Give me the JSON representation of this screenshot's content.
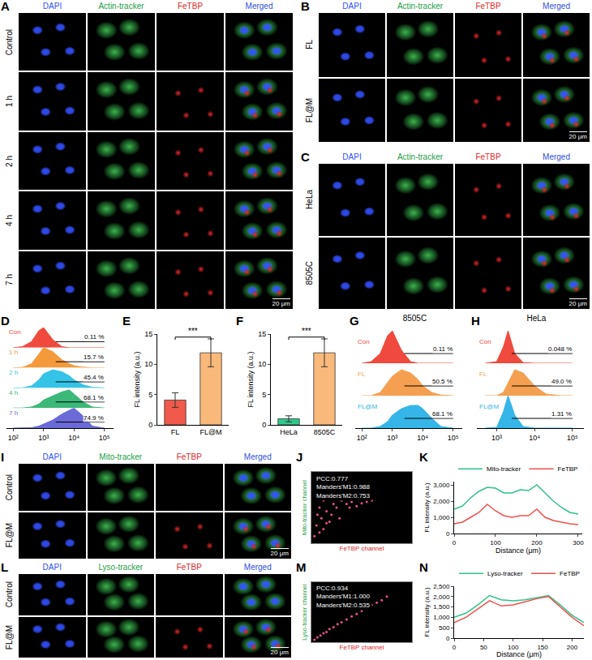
{
  "images": [
    {
      "letter": "A",
      "columns": [
        "DAPI",
        "Actin-tracker",
        "FeTBP",
        "Merged"
      ],
      "header_colors": [
        "#2f4fff",
        "#22a045",
        "#e02828",
        "#3050e0"
      ],
      "rows": [
        "Control",
        "1 h",
        "2 h",
        "4 h",
        "7 h"
      ],
      "fetbp_signal": [
        false,
        true,
        true,
        true,
        true
      ],
      "scale_bar": "20 μm"
    },
    {
      "letter": "B",
      "columns": [
        "DAPI",
        "Actin-tracker",
        "FeTBP",
        "Merged"
      ],
      "header_colors": [
        "#2f4fff",
        "#22a045",
        "#e02828",
        "#3050e0"
      ],
      "rows": [
        "FL",
        "FL@M"
      ],
      "fetbp_signal": [
        true,
        true
      ],
      "scale_bar": "20 μm"
    },
    {
      "letter": "C",
      "columns": [
        "DAPI",
        "Actin-tracker",
        "FeTBP",
        "Merged"
      ],
      "header_colors": [
        "#2f4fff",
        "#22a045",
        "#e02828",
        "#3050e0"
      ],
      "rows": [
        "HeLa",
        "8505C"
      ],
      "fetbp_signal": [
        true,
        true
      ],
      "scale_bar": "20 μm"
    },
    {
      "letter": "I",
      "columns": [
        "DAPI",
        "Mito-tracker",
        "FeTBP",
        "Merged"
      ],
      "header_colors": [
        "#2f4fff",
        "#22a045",
        "#e02828",
        "#3050e0"
      ],
      "rows": [
        "Control",
        "FL@M"
      ],
      "fetbp_signal": [
        false,
        true
      ],
      "scale_bar": "20 μm"
    },
    {
      "letter": "L",
      "columns": [
        "DAPI",
        "Lyso-tracker",
        "FeTBP",
        "Merged"
      ],
      "header_colors": [
        "#2f4fff",
        "#22a045",
        "#e02828",
        "#3050e0"
      ],
      "rows": [
        "Control",
        "FL@M"
      ],
      "fetbp_signal": [
        false,
        true
      ],
      "scale_bar": "20 μm"
    }
  ],
  "chart_data": [
    {
      "letter": "D",
      "type": "flow_histogram",
      "log": "x",
      "x": [
        100,
        200,
        400,
        700,
        1000,
        2000,
        4000,
        7000,
        10000,
        20000,
        40000,
        100000
      ],
      "xlim": [
        60,
        200000
      ],
      "xticks": [
        {
          "value": 100,
          "label": "10²"
        },
        {
          "value": 1000,
          "label": "10³"
        },
        {
          "value": 10000,
          "label": "10⁴"
        },
        {
          "value": 100000,
          "label": "10⁵"
        }
      ],
      "ylim": [
        0,
        1
      ],
      "tick_labels": "x",
      "gate": [
        2500,
        100000
      ],
      "series": [
        {
          "name": "Con",
          "color": "#f04a3e",
          "gate_label": "0.11 %",
          "values": [
            0,
            0.05,
            0.3,
            0.85,
            1,
            0.4,
            0.05,
            0,
            0,
            0,
            0,
            0
          ]
        },
        {
          "name": "1 h",
          "color": "#f59a3a",
          "gate_label": "15.7 %",
          "values": [
            0,
            0.02,
            0.2,
            0.7,
            1,
            0.8,
            0.4,
            0.2,
            0.1,
            0.03,
            0,
            0
          ]
        },
        {
          "name": "2 h",
          "color": "#35c4e8",
          "gate_label": "45.4 %",
          "values": [
            0,
            0,
            0.1,
            0.4,
            0.7,
            0.9,
            0.8,
            0.6,
            0.4,
            0.15,
            0.03,
            0
          ]
        },
        {
          "name": "4 h",
          "color": "#3cb878",
          "gate_label": "68.1 %",
          "values": [
            0,
            0,
            0.05,
            0.2,
            0.4,
            0.6,
            0.8,
            0.9,
            0.7,
            0.3,
            0.05,
            0
          ]
        },
        {
          "name": "7 h",
          "color": "#6a6ad8",
          "gate_label": "74.9 %",
          "values": [
            0,
            0,
            0.02,
            0.1,
            0.2,
            0.4,
            0.7,
            0.9,
            1,
            0.6,
            0.1,
            0
          ]
        }
      ]
    },
    {
      "letter": "E",
      "type": "bar",
      "categories": [
        "FL",
        "FL@M"
      ],
      "values": [
        4.1,
        11.9
      ],
      "errors": [
        1.2,
        2.3
      ],
      "colors": [
        "#f05a4a",
        "#f9b97a"
      ],
      "ylim": [
        0,
        15
      ],
      "yticks": [
        0,
        5,
        10,
        15
      ],
      "y_label": "FL intensity (a.u.)",
      "significance": "***"
    },
    {
      "letter": "F",
      "type": "bar",
      "categories": [
        "HeLa",
        "8505C"
      ],
      "values": [
        1.0,
        11.9
      ],
      "errors": [
        0.5,
        2.3
      ],
      "colors": [
        "#2fc98c",
        "#f9b97a"
      ],
      "ylim": [
        0,
        15
      ],
      "yticks": [
        0,
        5,
        10,
        15
      ],
      "y_label": "FL intensity (a.u.)",
      "significance": "***"
    },
    {
      "letter": "G",
      "type": "flow_histogram",
      "title": "8505C",
      "log": "x",
      "x": [
        100,
        200,
        400,
        700,
        1000,
        2000,
        4000,
        7000,
        10000,
        20000,
        40000,
        100000
      ],
      "xlim": [
        60,
        200000
      ],
      "xticks": [
        {
          "value": 100,
          "label": "10²"
        },
        {
          "value": 1000,
          "label": "10³"
        },
        {
          "value": 10000,
          "label": "10⁴"
        },
        {
          "value": 100000,
          "label": "10⁵"
        }
      ],
      "ylim": [
        0,
        1
      ],
      "tick_labels": "x",
      "gate": [
        2500,
        100000
      ],
      "series": [
        {
          "name": "Con",
          "color": "#f04a3e",
          "gate_label": "0.11 %",
          "values": [
            0,
            0.05,
            0.3,
            0.85,
            1,
            0.4,
            0.05,
            0,
            0,
            0,
            0,
            0
          ]
        },
        {
          "name": "FL",
          "color": "#f5a050",
          "gate_label": "50.5 %",
          "values": [
            0,
            0,
            0.1,
            0.4,
            0.6,
            0.8,
            0.7,
            0.5,
            0.3,
            0.1,
            0.02,
            0
          ]
        },
        {
          "name": "FL@M",
          "color": "#35b5e8",
          "gate_label": "68.1 %",
          "values": [
            0,
            0,
            0.05,
            0.2,
            0.4,
            0.6,
            0.7,
            0.7,
            0.6,
            0.3,
            0.05,
            0
          ]
        }
      ]
    },
    {
      "letter": "H",
      "type": "flow_histogram",
      "title": "HeLa",
      "log": "x",
      "x": [
        500,
        1000,
        1500,
        2000,
        3000,
        5000,
        10000,
        20000,
        50000,
        100000
      ],
      "xlim": [
        300,
        200000
      ],
      "xticks": [
        {
          "value": 1000,
          "label": "10³"
        },
        {
          "value": 10000,
          "label": "10⁴"
        },
        {
          "value": 100000,
          "label": "10⁵"
        }
      ],
      "ylim": [
        0,
        1
      ],
      "tick_labels": "x",
      "gate": [
        2500,
        100000
      ],
      "series": [
        {
          "name": "Con",
          "color": "#f04a3e",
          "gate_label": "0.048 %",
          "values": [
            0,
            0.05,
            0.5,
            1,
            0.3,
            0.02,
            0,
            0,
            0,
            0
          ]
        },
        {
          "name": "FL",
          "color": "#f5a050",
          "gate_label": "49.0 %",
          "values": [
            0,
            0,
            0.1,
            0.4,
            0.8,
            0.7,
            0.3,
            0.05,
            0,
            0
          ]
        },
        {
          "name": "FL@M",
          "color": "#35b5e8",
          "gate_label": "1.31 %",
          "values": [
            0,
            0.02,
            0.5,
            1,
            0.4,
            0.05,
            0,
            0,
            0,
            0
          ]
        }
      ]
    },
    {
      "letter": "J",
      "type": "scatter",
      "x": [
        3,
        5,
        8,
        10,
        12,
        15,
        18,
        20,
        22,
        25,
        28,
        30,
        35,
        40,
        45,
        50,
        55,
        60,
        8,
        12,
        6,
        15,
        25,
        38
      ],
      "y": [
        10,
        25,
        15,
        35,
        20,
        45,
        30,
        40,
        55,
        50,
        35,
        60,
        55,
        58,
        52,
        56,
        58,
        60,
        50,
        60,
        40,
        28,
        62,
        50
      ],
      "color": "#e8508a",
      "xlim": [
        0,
        100
      ],
      "ylim": [
        0,
        100
      ],
      "tick_labels": false,
      "x_label": "FeTBP channel",
      "y_label": "Mito-tracker channel",
      "x_label_color": "#e02828",
      "y_label_color": "#22a045",
      "annotations": [
        "PCC:0.777",
        "Manders'M1:0.988",
        "Manders'M2:0.753"
      ]
    },
    {
      "letter": "K",
      "type": "line",
      "x": [
        0,
        20,
        40,
        60,
        80,
        100,
        120,
        140,
        160,
        180,
        200,
        220,
        240,
        260,
        280,
        300
      ],
      "series": [
        {
          "name": "Mito-tracker",
          "color": "#2ec28a",
          "values": [
            1500,
            1700,
            2200,
            2600,
            2850,
            2800,
            2500,
            2500,
            2700,
            2650,
            3000,
            2500,
            2000,
            1600,
            1300,
            1200
          ]
        },
        {
          "name": "FeTBP",
          "color": "#f0504a",
          "values": [
            600,
            700,
            1000,
            1300,
            1800,
            1400,
            1100,
            1000,
            1100,
            1100,
            1500,
            1000,
            800,
            700,
            600,
            550
          ]
        }
      ],
      "xlim": [
        0,
        310
      ],
      "xticks": [
        0,
        100,
        200,
        300
      ],
      "ylim": [
        0,
        3200
      ],
      "yticks": [
        0,
        {
          "value": 1000,
          "label": "1,000"
        },
        {
          "value": 2000,
          "label": "2,000"
        },
        {
          "value": 3000,
          "label": "3,000"
        }
      ],
      "x_label": "Distance (μm)",
      "y_label": "FL intensity (a.u.)",
      "legend": "top"
    },
    {
      "letter": "M",
      "type": "scatter",
      "x": [
        3,
        6,
        9,
        12,
        15,
        18,
        22,
        26,
        30,
        35,
        40,
        45,
        50,
        55,
        60,
        65,
        70,
        75
      ],
      "y": [
        4,
        8,
        11,
        15,
        17,
        22,
        25,
        30,
        33,
        38,
        43,
        47,
        52,
        56,
        62,
        66,
        70,
        76
      ],
      "color": "#e8508a",
      "xlim": [
        0,
        100
      ],
      "ylim": [
        0,
        100
      ],
      "tick_labels": false,
      "x_label": "FeTBP channel",
      "y_label": "Lyso-tracker channel",
      "x_label_color": "#e02828",
      "y_label_color": "#22a045",
      "annotations": [
        "PCC:0.934",
        "Manders'M1:1.000",
        "Manders'M2:0.535"
      ]
    },
    {
      "letter": "N",
      "type": "line",
      "x": [
        0,
        20,
        40,
        60,
        80,
        100,
        120,
        140,
        160,
        180,
        200,
        220
      ],
      "series": [
        {
          "name": "Lyso-tracker",
          "color": "#2ec28a",
          "values": [
            1000,
            1200,
            1600,
            2050,
            1850,
            1800,
            1850,
            1950,
            2050,
            1600,
            1100,
            750
          ]
        },
        {
          "name": "FeTBP",
          "color": "#f0504a",
          "values": [
            750,
            1000,
            1400,
            1800,
            1550,
            1600,
            1750,
            1900,
            2000,
            1500,
            1000,
            600
          ]
        }
      ],
      "xlim": [
        0,
        220
      ],
      "xticks": [
        0,
        50,
        100,
        150,
        200
      ],
      "ylim": [
        0,
        2500
      ],
      "yticks": [
        0,
        500,
        {
          "value": 1000,
          "label": "1,000"
        },
        {
          "value": 1500,
          "label": "1,500"
        },
        {
          "value": 2000,
          "label": "2,000"
        },
        {
          "value": 2500,
          "label": "2,500"
        }
      ],
      "x_label": "Distance (μm)",
      "y_label": "FL intensity (a.u.)",
      "legend": "top"
    }
  ]
}
